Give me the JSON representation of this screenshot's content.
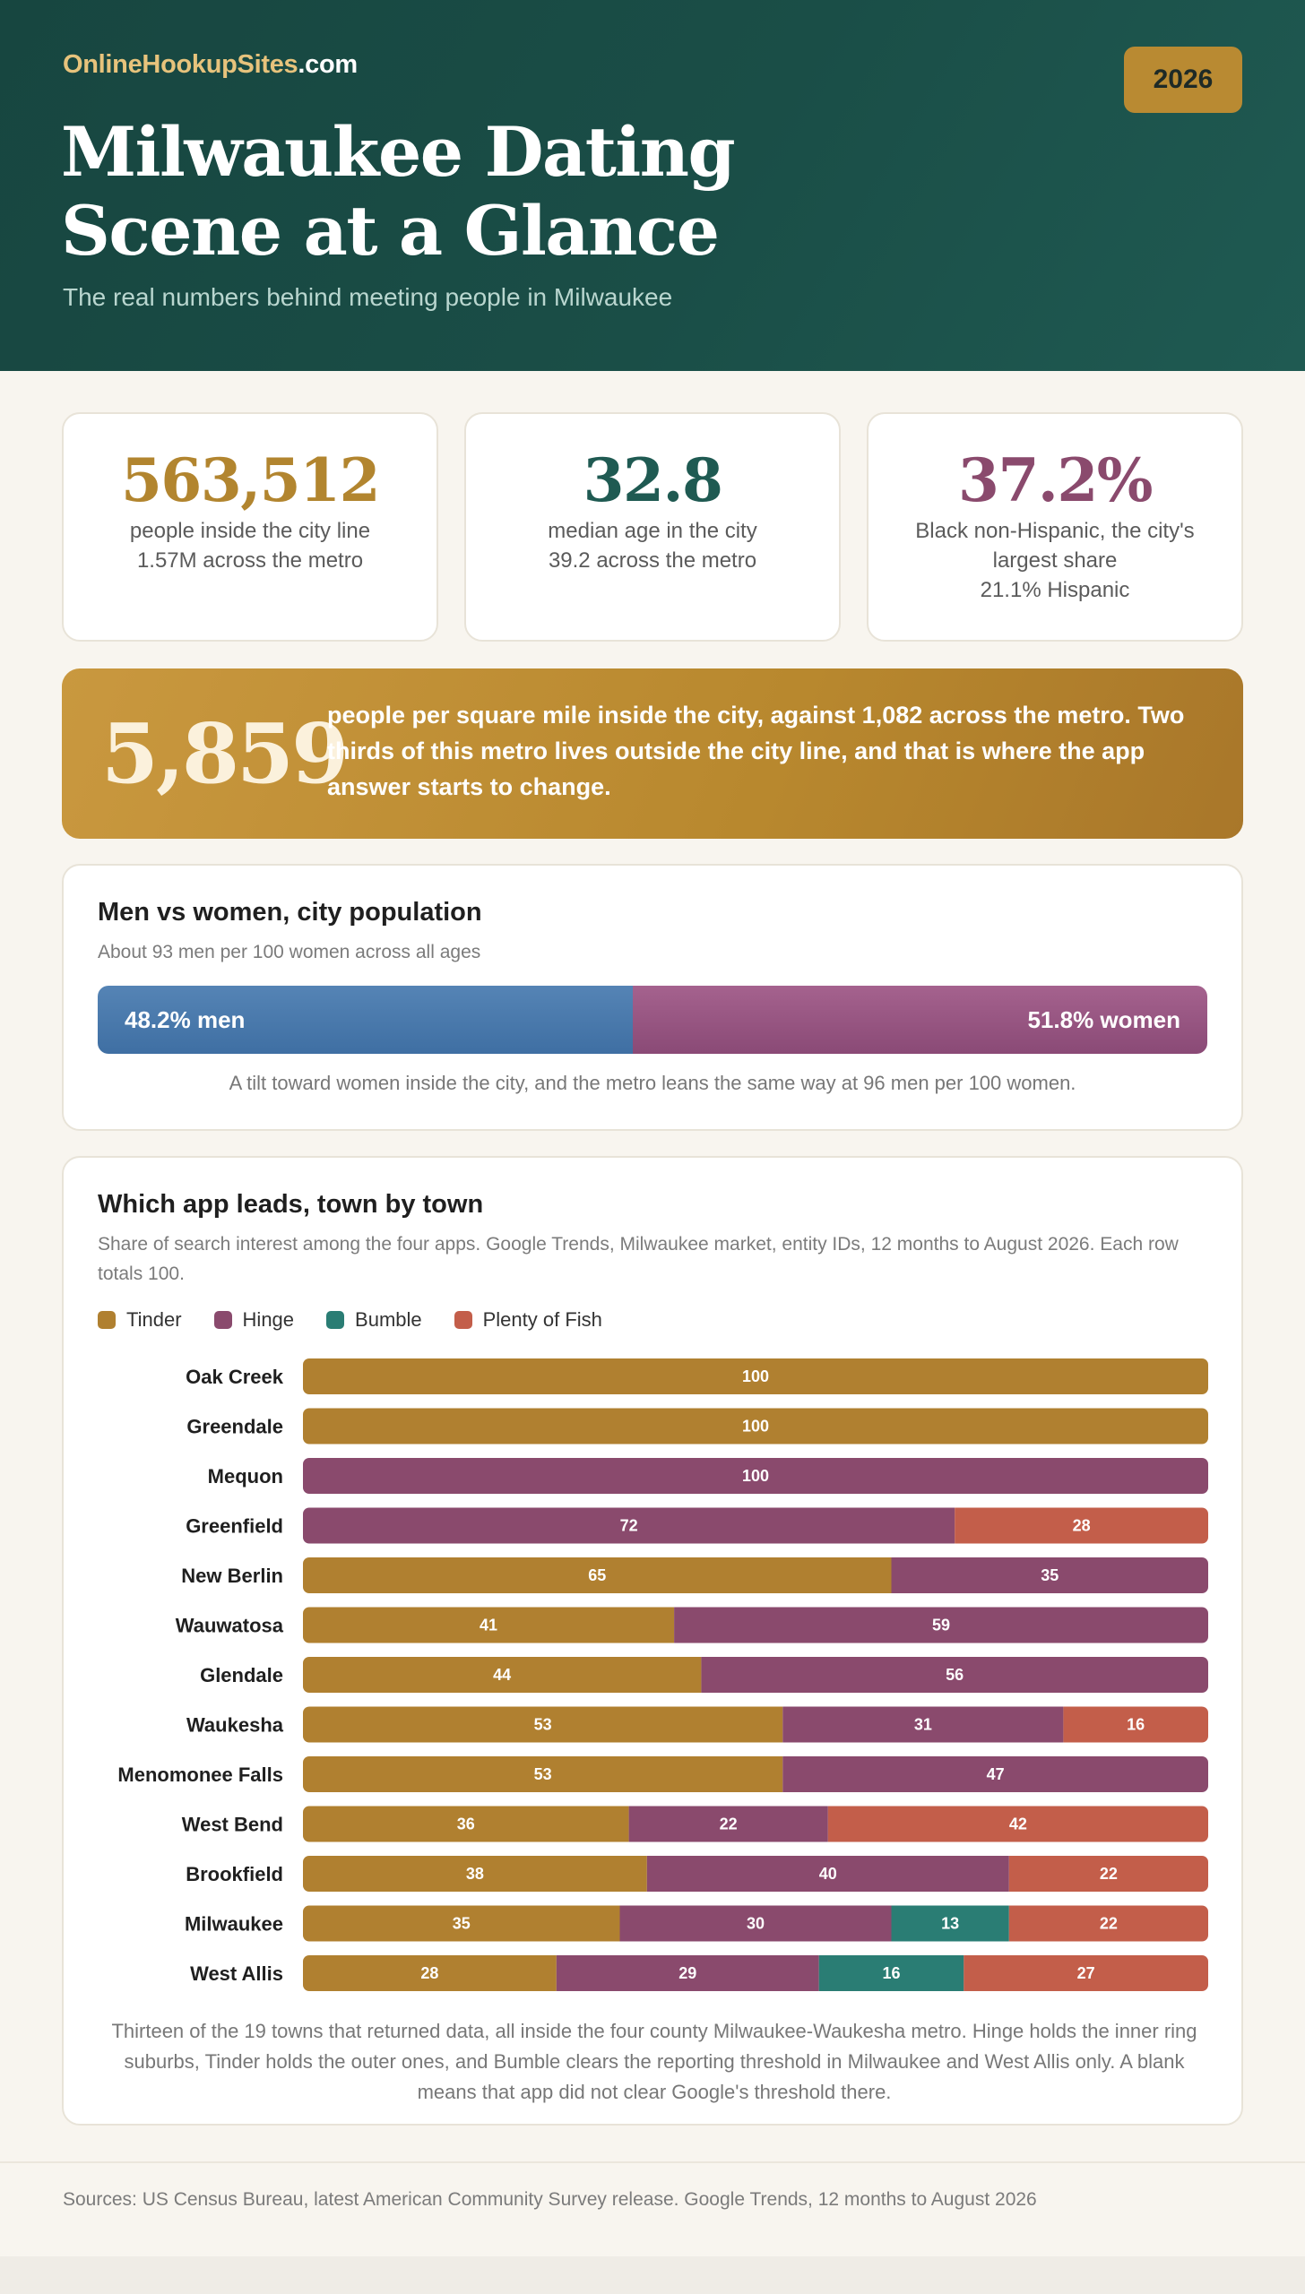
{
  "header": {
    "brand_part1": "OnlineHookupSites",
    "brand_part2": ".com",
    "year": "2026",
    "title": "Milwaukee Dating Scene at a Glance",
    "subtitle": "The real numbers behind meeting people in Milwaukee"
  },
  "stats": [
    {
      "value": "563,512",
      "line1": "people inside the city line",
      "line2": "1.57M across the metro",
      "line3": "",
      "color": "#b2852f"
    },
    {
      "value": "32.8",
      "line1": "median age in the city",
      "line2": "39.2 across the metro",
      "line3": "",
      "color": "#1f5a52"
    },
    {
      "value": "37.2%",
      "line1": "Black non-Hispanic, the city's",
      "line2": "largest share",
      "line3": "21.1% Hispanic",
      "color": "#8a4a6d"
    }
  ],
  "density": {
    "value": "5,859",
    "text": "people per square mile inside the city, against 1,082 across the metro. Two thirds of this metro lives outside the city line, and that is where the app answer starts to change."
  },
  "gender": {
    "title": "Men vs women, city population",
    "subtitle": "About 93 men per 100 women across all ages",
    "men_share": 48.2,
    "women_share": 51.8,
    "men_label": "48.2% men",
    "women_label": "51.8% women",
    "note": "A tilt toward women inside the city, and the metro leans the same way at 96 men per 100 women.",
    "colors": {
      "men": "#4a78ac",
      "women": "#94527f"
    }
  },
  "apps": {
    "title": "Which app leads, town by town",
    "subtitle": "Share of search interest among the four apps. Google Trends, Milwaukee market, entity IDs, 12 months to August 2026. Each row totals 100.",
    "legend": [
      {
        "name": "Tinder",
        "color": "#b08030"
      },
      {
        "name": "Hinge",
        "color": "#8a4a6d"
      },
      {
        "name": "Bumble",
        "color": "#2a7d74"
      },
      {
        "name": "Plenty of Fish",
        "color": "#c35e4a"
      }
    ],
    "note": "Thirteen of the 19 towns that returned data, all inside the four county Milwaukee-Waukesha metro. Hinge holds the inner ring suburbs, Tinder holds the outer ones, and Bumble clears the reporting threshold in Milwaukee and West Allis only. A blank means that app did not clear Google's threshold there."
  },
  "chart_data": {
    "type": "bar",
    "orientation": "horizontal",
    "stacked": true,
    "xlim": [
      0,
      100
    ],
    "categories": [
      "Oak Creek",
      "Greendale",
      "Mequon",
      "Greenfield",
      "New Berlin",
      "Wauwatosa",
      "Glendale",
      "Waukesha",
      "Menomonee Falls",
      "West Bend",
      "Brookfield",
      "Milwaukee",
      "West Allis"
    ],
    "series": [
      {
        "name": "Tinder",
        "color": "#b08030",
        "values": [
          100,
          100,
          0,
          0,
          65,
          41,
          44,
          53,
          53,
          36,
          38,
          35,
          28
        ]
      },
      {
        "name": "Hinge",
        "color": "#8a4a6d",
        "values": [
          0,
          0,
          100,
          72,
          35,
          59,
          56,
          31,
          47,
          22,
          40,
          30,
          29
        ]
      },
      {
        "name": "Bumble",
        "color": "#2a7d74",
        "values": [
          0,
          0,
          0,
          0,
          0,
          0,
          0,
          0,
          0,
          0,
          0,
          13,
          16
        ]
      },
      {
        "name": "Plenty of Fish",
        "color": "#c35e4a",
        "values": [
          0,
          0,
          0,
          28,
          0,
          0,
          0,
          16,
          0,
          42,
          22,
          22,
          27
        ]
      }
    ]
  },
  "footer": {
    "sources": "Sources: US Census Bureau, latest American Community Survey release. Google Trends, 12 months to August 2026"
  }
}
